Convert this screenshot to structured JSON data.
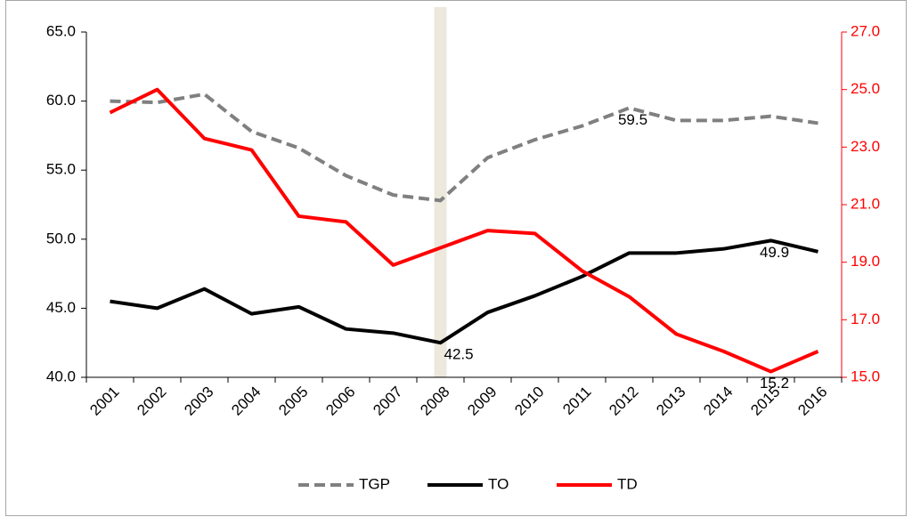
{
  "chart_data": {
    "type": "line",
    "categories": [
      "2001",
      "2002",
      "2003",
      "2004",
      "2005",
      "2006",
      "2007",
      "2008",
      "2009",
      "2010",
      "2011",
      "2012",
      "2013",
      "2014",
      "2015",
      "2016"
    ],
    "series": [
      {
        "name": "TGP",
        "color": "#808080",
        "style": "dashed",
        "values": [
          60.0,
          59.9,
          60.5,
          57.8,
          56.6,
          54.6,
          53.2,
          52.8,
          55.9,
          57.2,
          58.2,
          59.5,
          58.6,
          58.6,
          58.9,
          58.4
        ],
        "value_labels": [
          null,
          null,
          null,
          null,
          null,
          null,
          null,
          null,
          null,
          null,
          null,
          "59.5",
          null,
          null,
          null,
          null
        ]
      },
      {
        "name": "TO",
        "color": "#000000",
        "style": "solid",
        "values": [
          45.5,
          45.0,
          46.4,
          44.6,
          45.1,
          43.5,
          43.2,
          42.5,
          44.7,
          45.9,
          47.3,
          49.0,
          49.0,
          49.3,
          49.9,
          49.1
        ],
        "value_labels": [
          null,
          null,
          null,
          null,
          null,
          null,
          null,
          "42.5",
          null,
          null,
          null,
          null,
          null,
          null,
          "49.9",
          null
        ]
      },
      {
        "name": "TD",
        "color": "#ff0000",
        "style": "solid",
        "axis": "y2",
        "values": [
          24.2,
          25.0,
          23.3,
          22.9,
          20.6,
          20.4,
          18.9,
          19.5,
          20.1,
          20.0,
          18.7,
          17.8,
          16.5,
          15.9,
          15.2,
          15.9
        ],
        "value_labels": [
          null,
          null,
          null,
          null,
          null,
          null,
          null,
          null,
          null,
          null,
          null,
          null,
          null,
          null,
          "15.2",
          null
        ]
      }
    ],
    "ylim": [
      40,
      65
    ],
    "yticks": [
      {
        "value": 40,
        "label": "40.0"
      },
      {
        "value": 45,
        "label": "45.0"
      },
      {
        "value": 50,
        "label": "50.0"
      },
      {
        "value": 55,
        "label": "55.0"
      },
      {
        "value": 60,
        "label": "60.0"
      },
      {
        "value": 65,
        "label": "65.0"
      }
    ],
    "y2lim": [
      15,
      27
    ],
    "y2ticks": [
      {
        "value": 15,
        "label": "15.0"
      },
      {
        "value": 17,
        "label": "17.0"
      },
      {
        "value": 19,
        "label": "19.0"
      },
      {
        "value": 21,
        "label": "21.0"
      },
      {
        "value": 23,
        "label": "23.0"
      },
      {
        "value": 25,
        "label": "25.0"
      },
      {
        "value": 27,
        "label": "27.0"
      }
    ],
    "y2color": "#ff0000",
    "legend": "bottom"
  }
}
